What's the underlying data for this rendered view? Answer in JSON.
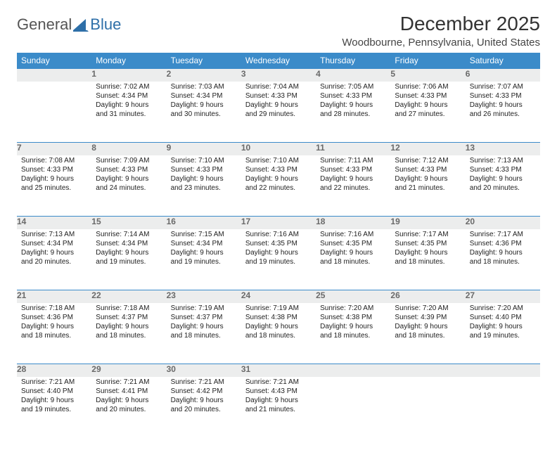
{
  "logo": {
    "text1": "General",
    "text2": "Blue",
    "sail_color": "#2e6fa8"
  },
  "title": "December 2025",
  "location": "Woodbourne, Pennsylvania, United States",
  "colors": {
    "header_bg": "#3b8bc9",
    "header_fg": "#ffffff",
    "daynum_bg": "#eceded",
    "rule": "#3b8bc9",
    "text": "#222222"
  },
  "days": [
    "Sunday",
    "Monday",
    "Tuesday",
    "Wednesday",
    "Thursday",
    "Friday",
    "Saturday"
  ],
  "weeks": [
    [
      null,
      {
        "n": "1",
        "sr": "7:02 AM",
        "ss": "4:34 PM",
        "dl": "9 hours and 31 minutes."
      },
      {
        "n": "2",
        "sr": "7:03 AM",
        "ss": "4:34 PM",
        "dl": "9 hours and 30 minutes."
      },
      {
        "n": "3",
        "sr": "7:04 AM",
        "ss": "4:33 PM",
        "dl": "9 hours and 29 minutes."
      },
      {
        "n": "4",
        "sr": "7:05 AM",
        "ss": "4:33 PM",
        "dl": "9 hours and 28 minutes."
      },
      {
        "n": "5",
        "sr": "7:06 AM",
        "ss": "4:33 PM",
        "dl": "9 hours and 27 minutes."
      },
      {
        "n": "6",
        "sr": "7:07 AM",
        "ss": "4:33 PM",
        "dl": "9 hours and 26 minutes."
      }
    ],
    [
      {
        "n": "7",
        "sr": "7:08 AM",
        "ss": "4:33 PM",
        "dl": "9 hours and 25 minutes."
      },
      {
        "n": "8",
        "sr": "7:09 AM",
        "ss": "4:33 PM",
        "dl": "9 hours and 24 minutes."
      },
      {
        "n": "9",
        "sr": "7:10 AM",
        "ss": "4:33 PM",
        "dl": "9 hours and 23 minutes."
      },
      {
        "n": "10",
        "sr": "7:10 AM",
        "ss": "4:33 PM",
        "dl": "9 hours and 22 minutes."
      },
      {
        "n": "11",
        "sr": "7:11 AM",
        "ss": "4:33 PM",
        "dl": "9 hours and 22 minutes."
      },
      {
        "n": "12",
        "sr": "7:12 AM",
        "ss": "4:33 PM",
        "dl": "9 hours and 21 minutes."
      },
      {
        "n": "13",
        "sr": "7:13 AM",
        "ss": "4:33 PM",
        "dl": "9 hours and 20 minutes."
      }
    ],
    [
      {
        "n": "14",
        "sr": "7:13 AM",
        "ss": "4:34 PM",
        "dl": "9 hours and 20 minutes."
      },
      {
        "n": "15",
        "sr": "7:14 AM",
        "ss": "4:34 PM",
        "dl": "9 hours and 19 minutes."
      },
      {
        "n": "16",
        "sr": "7:15 AM",
        "ss": "4:34 PM",
        "dl": "9 hours and 19 minutes."
      },
      {
        "n": "17",
        "sr": "7:16 AM",
        "ss": "4:35 PM",
        "dl": "9 hours and 19 minutes."
      },
      {
        "n": "18",
        "sr": "7:16 AM",
        "ss": "4:35 PM",
        "dl": "9 hours and 18 minutes."
      },
      {
        "n": "19",
        "sr": "7:17 AM",
        "ss": "4:35 PM",
        "dl": "9 hours and 18 minutes."
      },
      {
        "n": "20",
        "sr": "7:17 AM",
        "ss": "4:36 PM",
        "dl": "9 hours and 18 minutes."
      }
    ],
    [
      {
        "n": "21",
        "sr": "7:18 AM",
        "ss": "4:36 PM",
        "dl": "9 hours and 18 minutes."
      },
      {
        "n": "22",
        "sr": "7:18 AM",
        "ss": "4:37 PM",
        "dl": "9 hours and 18 minutes."
      },
      {
        "n": "23",
        "sr": "7:19 AM",
        "ss": "4:37 PM",
        "dl": "9 hours and 18 minutes."
      },
      {
        "n": "24",
        "sr": "7:19 AM",
        "ss": "4:38 PM",
        "dl": "9 hours and 18 minutes."
      },
      {
        "n": "25",
        "sr": "7:20 AM",
        "ss": "4:38 PM",
        "dl": "9 hours and 18 minutes."
      },
      {
        "n": "26",
        "sr": "7:20 AM",
        "ss": "4:39 PM",
        "dl": "9 hours and 18 minutes."
      },
      {
        "n": "27",
        "sr": "7:20 AM",
        "ss": "4:40 PM",
        "dl": "9 hours and 19 minutes."
      }
    ],
    [
      {
        "n": "28",
        "sr": "7:21 AM",
        "ss": "4:40 PM",
        "dl": "9 hours and 19 minutes."
      },
      {
        "n": "29",
        "sr": "7:21 AM",
        "ss": "4:41 PM",
        "dl": "9 hours and 20 minutes."
      },
      {
        "n": "30",
        "sr": "7:21 AM",
        "ss": "4:42 PM",
        "dl": "9 hours and 20 minutes."
      },
      {
        "n": "31",
        "sr": "7:21 AM",
        "ss": "4:43 PM",
        "dl": "9 hours and 21 minutes."
      },
      null,
      null,
      null
    ]
  ],
  "labels": {
    "sunrise": "Sunrise:",
    "sunset": "Sunset:",
    "daylight": "Daylight:"
  }
}
